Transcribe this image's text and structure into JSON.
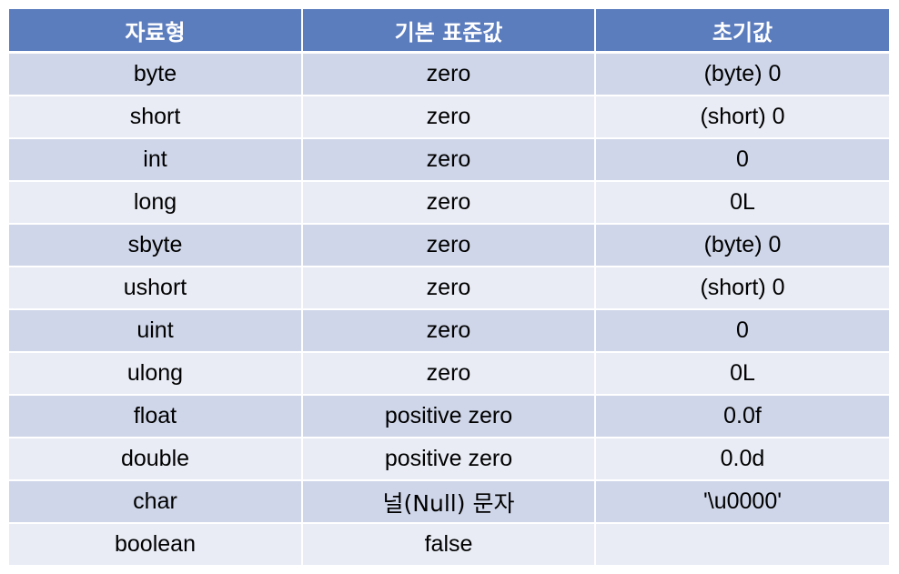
{
  "table": {
    "headers": [
      "자료형",
      "기본 표준값",
      "초기값"
    ],
    "rows": [
      {
        "type": "byte",
        "default": "zero",
        "initial": "(byte) 0"
      },
      {
        "type": "short",
        "default": "zero",
        "initial": "(short) 0"
      },
      {
        "type": "int",
        "default": "zero",
        "initial": "0"
      },
      {
        "type": "long",
        "default": "zero",
        "initial": "0L"
      },
      {
        "type": "sbyte",
        "default": "zero",
        "initial": "(byte) 0"
      },
      {
        "type": "ushort",
        "default": "zero",
        "initial": "(short) 0"
      },
      {
        "type": "uint",
        "default": "zero",
        "initial": "0"
      },
      {
        "type": "ulong",
        "default": "zero",
        "initial": "0L"
      },
      {
        "type": "float",
        "default": "positive zero",
        "initial": "0.0f"
      },
      {
        "type": "double",
        "default": "positive zero",
        "initial": "0.0d"
      },
      {
        "type": "char",
        "default": "널(Null) 문자",
        "initial": "'\\u0000'"
      },
      {
        "type": "boolean",
        "default": "false",
        "initial": ""
      }
    ]
  },
  "colors": {
    "header_bg": "#5b7cbd",
    "row_odd": "#cfd6e9",
    "row_even": "#e9ecf5"
  }
}
